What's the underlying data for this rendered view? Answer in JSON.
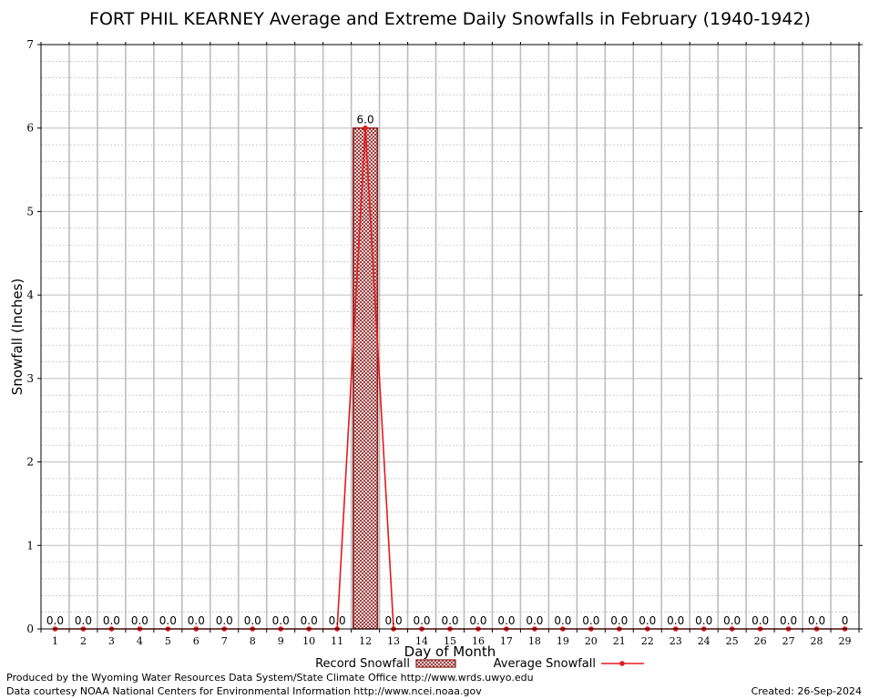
{
  "chart_data": {
    "type": "bar",
    "title": "FORT PHIL KEARNEY Average and Extreme Daily Snowfalls in February (1940-1942)",
    "xlabel": "Day of Month",
    "ylabel": "Snowfall (Inches)",
    "ylim": [
      0,
      7
    ],
    "yticks": [
      "0",
      "1",
      "2",
      "3",
      "4",
      "5",
      "6",
      "7"
    ],
    "categories": [
      "1",
      "2",
      "3",
      "4",
      "5",
      "6",
      "7",
      "8",
      "9",
      "10",
      "11",
      "12",
      "13",
      "14",
      "15",
      "16",
      "17",
      "18",
      "19",
      "20",
      "21",
      "22",
      "23",
      "24",
      "25",
      "26",
      "27",
      "28",
      "29"
    ],
    "series": [
      {
        "name": "Record Snowfall",
        "kind": "bar",
        "color": "#8b1a1a",
        "values": [
          0,
          0,
          0,
          0,
          0,
          0,
          0,
          0,
          0,
          0,
          0,
          6.0,
          0,
          0,
          0,
          0,
          0,
          0,
          0,
          0,
          0,
          0,
          0,
          0,
          0,
          0,
          0,
          0,
          0
        ],
        "labels": [
          "0.0",
          "0.0",
          "0.0",
          "0.0",
          "0.0",
          "0.0",
          "0.0",
          "0.0",
          "0.0",
          "0.0",
          "0.0",
          "6.0",
          "0.0",
          "0.0",
          "0.0",
          "0.0",
          "0.0",
          "0.0",
          "0.0",
          "0.0",
          "0.0",
          "0.0",
          "0.0",
          "0.0",
          "0.0",
          "0.0",
          "0.0",
          "0.0",
          "0"
        ]
      },
      {
        "name": "Average Snowfall",
        "kind": "line",
        "color": "#e41a1c",
        "values": [
          0,
          0,
          0,
          0,
          0,
          0,
          0,
          0,
          0,
          0,
          0,
          6.0,
          0,
          0,
          0,
          0,
          0,
          0,
          0,
          0,
          0,
          0,
          0,
          0,
          0,
          0,
          0,
          0,
          0
        ]
      }
    ],
    "grid": true,
    "minor_grid": true,
    "legend_position": "bottom-center"
  },
  "footer": {
    "produced": "Produced by the Wyoming Water Resources Data System/State Climate Office http://www.wrds.uwyo.edu",
    "courtesy": "Data courtesy NOAA National Centers for Environmental Information http://www.ncei.noaa.gov",
    "created": "Created: 26-Sep-2024"
  }
}
